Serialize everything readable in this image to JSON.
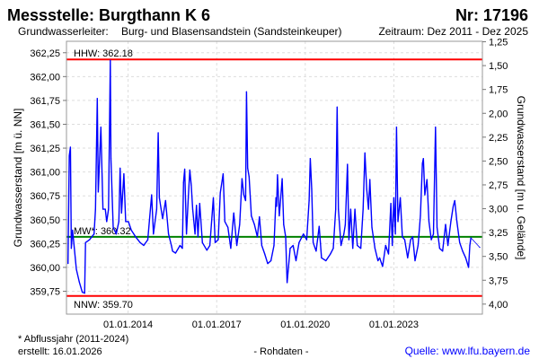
{
  "header": {
    "title": "Messstelle: Burgthann K 6",
    "number": "Nr: 17196",
    "aquifer_label": "Grundwasserleiter:",
    "aquifer": "Burg- und Blasensandstein (Sandsteinkeuper)",
    "period": "Zeitraum: Dez 2011 - Dez 2025"
  },
  "footer": {
    "note": "* Abflussjahr (2011-2024)",
    "created": "erstellt:  16.01.2026",
    "data_type": "- Rohdaten -",
    "source": "Quelle: www.lfu.bayern.de"
  },
  "chart_data": {
    "type": "line",
    "ylabel": "Grundwasserstand [m ü. NN]",
    "y2label": "Grundwasserstand [m u. Gelände]",
    "xlim": [
      "2011-12-01",
      "2025-12-31"
    ],
    "ylim": [
      359.51,
      362.37
    ],
    "y2_ground_level": 363.615,
    "grid": true,
    "x_ticks": [
      {
        "date": "2014-01-01",
        "label": "01.01.2014"
      },
      {
        "date": "2017-01-01",
        "label": "01.01.2017"
      },
      {
        "date": "2020-01-01",
        "label": "01.01.2020"
      },
      {
        "date": "2023-01-01",
        "label": "01.01.2023"
      }
    ],
    "y_ticks": [
      {
        "value": 362.25,
        "label": "362,25"
      },
      {
        "value": 362.0,
        "label": "362,00"
      },
      {
        "value": 361.75,
        "label": "361,75"
      },
      {
        "value": 361.5,
        "label": "361,50"
      },
      {
        "value": 361.25,
        "label": "361,25"
      },
      {
        "value": 361.0,
        "label": "361,00"
      },
      {
        "value": 360.75,
        "label": "360,75"
      },
      {
        "value": 360.5,
        "label": "360,50"
      },
      {
        "value": 360.25,
        "label": "360,25"
      },
      {
        "value": 360.0,
        "label": "360,00"
      },
      {
        "value": 359.75,
        "label": "359,75"
      }
    ],
    "y2_ticks": [
      {
        "value": 1.25,
        "label": "1,25"
      },
      {
        "value": 1.5,
        "label": "1,50"
      },
      {
        "value": 1.75,
        "label": "1,75"
      },
      {
        "value": 2.0,
        "label": "2,00"
      },
      {
        "value": 2.25,
        "label": "2,25"
      },
      {
        "value": 2.5,
        "label": "2,50"
      },
      {
        "value": 2.75,
        "label": "2,75"
      },
      {
        "value": 3.0,
        "label": "3,00"
      },
      {
        "value": 3.25,
        "label": "3,25"
      },
      {
        "value": 3.5,
        "label": "3,50"
      },
      {
        "value": 3.75,
        "label": "3,75"
      },
      {
        "value": 4.0,
        "label": "4,00"
      }
    ],
    "reference_lines": [
      {
        "name": "HHW",
        "label": "HHW: 362.18",
        "value": 362.18,
        "color": "#ff0000",
        "label_pos": "above"
      },
      {
        "name": "MW",
        "label": "MW*: 360.32",
        "value": 360.32,
        "color": "#008000",
        "label_pos": "above"
      },
      {
        "name": "NNW",
        "label": "NNW: 359.70",
        "value": 359.7,
        "color": "#ff0000",
        "label_pos": "below"
      }
    ],
    "series": [
      {
        "color": "#0000ff",
        "points": [
          [
            "2011-12-20",
            360.04
          ],
          [
            "2012-01-04",
            361.17
          ],
          [
            "2012-01-19",
            361.26
          ],
          [
            "2012-01-30",
            360.2
          ],
          [
            "2012-02-14",
            360.39
          ],
          [
            "2012-04-01",
            359.98
          ],
          [
            "2012-05-07",
            359.85
          ],
          [
            "2012-06-13",
            359.74
          ],
          [
            "2012-07-12",
            359.73
          ],
          [
            "2012-07-23",
            360.26
          ],
          [
            "2012-09-12",
            360.29
          ],
          [
            "2012-11-06",
            360.35
          ],
          [
            "2012-11-24",
            360.61
          ],
          [
            "2012-12-16",
            361.77
          ],
          [
            "2012-12-28",
            360.79
          ],
          [
            "2013-01-30",
            361.47
          ],
          [
            "2013-02-24",
            360.61
          ],
          [
            "2013-03-25",
            360.61
          ],
          [
            "2013-04-12",
            360.48
          ],
          [
            "2013-05-04",
            360.61
          ],
          [
            "2013-05-26",
            362.17
          ],
          [
            "2013-06-03",
            361.14
          ],
          [
            "2013-07-01",
            360.42
          ],
          [
            "2013-08-07",
            360.35
          ],
          [
            "2013-09-09",
            360.48
          ],
          [
            "2013-09-24",
            361.04
          ],
          [
            "2013-10-12",
            360.57
          ],
          [
            "2013-11-10",
            360.98
          ],
          [
            "2013-12-02",
            360.48
          ],
          [
            "2014-01-04",
            360.48
          ],
          [
            "2014-02-10",
            360.39
          ],
          [
            "2014-04-05",
            360.32
          ],
          [
            "2014-05-30",
            360.26
          ],
          [
            "2014-07-13",
            360.23
          ],
          [
            "2014-09-02",
            360.29
          ],
          [
            "2014-10-19",
            360.76
          ],
          [
            "2014-11-10",
            360.35
          ],
          [
            "2014-12-20",
            360.61
          ],
          [
            "2015-01-08",
            361.41
          ],
          [
            "2015-01-23",
            360.73
          ],
          [
            "2015-03-04",
            360.51
          ],
          [
            "2015-04-09",
            360.7
          ],
          [
            "2015-05-16",
            360.35
          ],
          [
            "2015-06-21",
            360.23
          ],
          [
            "2015-07-05",
            360.17
          ],
          [
            "2015-08-11",
            360.15
          ],
          [
            "2015-10-05",
            360.23
          ],
          [
            "2015-11-03",
            360.2
          ],
          [
            "2015-11-18",
            360.89
          ],
          [
            "2015-12-02",
            361.03
          ],
          [
            "2015-12-24",
            360.35
          ],
          [
            "2016-01-15",
            360.73
          ],
          [
            "2016-02-03",
            361.02
          ],
          [
            "2016-02-21",
            360.86
          ],
          [
            "2016-03-10",
            360.61
          ],
          [
            "2016-04-08",
            360.35
          ],
          [
            "2016-04-26",
            360.65
          ],
          [
            "2016-05-14",
            360.32
          ],
          [
            "2016-06-05",
            360.67
          ],
          [
            "2016-07-08",
            360.26
          ],
          [
            "2016-09-02",
            360.18
          ],
          [
            "2016-10-08",
            360.23
          ],
          [
            "2016-11-21",
            360.73
          ],
          [
            "2016-12-13",
            360.26
          ],
          [
            "2017-01-19",
            360.29
          ],
          [
            "2017-02-14",
            360.78
          ],
          [
            "2017-03-22",
            360.98
          ],
          [
            "2017-04-12",
            360.48
          ],
          [
            "2017-05-19",
            360.42
          ],
          [
            "2017-06-24",
            360.2
          ],
          [
            "2017-07-31",
            360.57
          ],
          [
            "2017-09-06",
            360.23
          ],
          [
            "2017-10-12",
            360.45
          ],
          [
            "2017-11-10",
            360.93
          ],
          [
            "2017-12-02",
            360.76
          ],
          [
            "2017-12-24",
            360.7
          ],
          [
            "2018-01-04",
            361.84
          ],
          [
            "2018-01-19",
            361.04
          ],
          [
            "2018-02-06",
            360.95
          ],
          [
            "2018-03-06",
            360.54
          ],
          [
            "2018-04-12",
            360.45
          ],
          [
            "2018-05-19",
            360.32
          ],
          [
            "2018-06-13",
            360.53
          ],
          [
            "2018-07-12",
            360.23
          ],
          [
            "2018-08-18",
            360.14
          ],
          [
            "2018-09-24",
            360.04
          ],
          [
            "2018-11-03",
            360.07
          ],
          [
            "2018-12-10",
            360.23
          ],
          [
            "2019-01-04",
            360.73
          ],
          [
            "2019-01-12",
            360.64
          ],
          [
            "2019-01-23",
            360.97
          ],
          [
            "2019-02-14",
            360.54
          ],
          [
            "2019-03-04",
            360.73
          ],
          [
            "2019-03-22",
            360.93
          ],
          [
            "2019-04-09",
            360.45
          ],
          [
            "2019-05-04",
            360.32
          ],
          [
            "2019-05-22",
            359.84
          ],
          [
            "2019-06-28",
            360.2
          ],
          [
            "2019-08-04",
            360.23
          ],
          [
            "2019-09-09",
            360.07
          ],
          [
            "2019-10-16",
            360.26
          ],
          [
            "2019-12-10",
            360.35
          ],
          [
            "2020-01-19",
            360.29
          ],
          [
            "2020-02-18",
            360.7
          ],
          [
            "2020-03-03",
            361.14
          ],
          [
            "2020-03-21",
            360.82
          ],
          [
            "2020-04-08",
            360.26
          ],
          [
            "2020-05-15",
            360.17
          ],
          [
            "2020-06-21",
            360.43
          ],
          [
            "2020-07-20",
            360.1
          ],
          [
            "2020-09-13",
            360.07
          ],
          [
            "2020-11-07",
            360.14
          ],
          [
            "2020-12-13",
            360.2
          ],
          [
            "2021-01-12",
            360.61
          ],
          [
            "2021-01-30",
            361.68
          ],
          [
            "2021-02-14",
            360.61
          ],
          [
            "2021-03-18",
            360.23
          ],
          [
            "2021-04-23",
            360.35
          ],
          [
            "2021-05-11",
            360.45
          ],
          [
            "2021-06-06",
            361.08
          ],
          [
            "2021-06-24",
            360.29
          ],
          [
            "2021-07-16",
            360.61
          ],
          [
            "2021-08-11",
            360.2
          ],
          [
            "2021-09-06",
            360.61
          ],
          [
            "2021-10-05",
            360.23
          ],
          [
            "2021-11-18",
            360.2
          ],
          [
            "2021-12-17",
            360.61
          ],
          [
            "2022-01-08",
            361.2
          ],
          [
            "2022-01-30",
            360.82
          ],
          [
            "2022-02-21",
            360.61
          ],
          [
            "2022-03-10",
            360.92
          ],
          [
            "2022-04-05",
            360.42
          ],
          [
            "2022-05-12",
            360.2
          ],
          [
            "2022-06-18",
            360.07
          ],
          [
            "2022-07-09",
            360.1
          ],
          [
            "2022-08-15",
            360.01
          ],
          [
            "2022-09-21",
            360.23
          ],
          [
            "2022-10-27",
            360.14
          ],
          [
            "2022-11-25",
            360.67
          ],
          [
            "2022-12-13",
            360.23
          ],
          [
            "2023-01-01",
            360.73
          ],
          [
            "2023-01-19",
            360.35
          ],
          [
            "2023-02-03",
            361.47
          ],
          [
            "2023-02-21",
            360.48
          ],
          [
            "2023-03-22",
            360.73
          ],
          [
            "2023-04-16",
            360.32
          ],
          [
            "2023-05-15",
            360.29
          ],
          [
            "2023-06-21",
            360.1
          ],
          [
            "2023-07-27",
            360.29
          ],
          [
            "2023-08-22",
            360.32
          ],
          [
            "2023-09-20",
            360.07
          ],
          [
            "2023-10-27",
            360.23
          ],
          [
            "2023-11-25",
            360.54
          ],
          [
            "2023-12-20",
            361.09
          ],
          [
            "2024-01-01",
            361.14
          ],
          [
            "2024-01-19",
            360.76
          ],
          [
            "2024-02-14",
            360.92
          ],
          [
            "2024-03-10",
            360.48
          ],
          [
            "2024-04-08",
            360.29
          ],
          [
            "2024-05-04",
            360.35
          ],
          [
            "2024-05-30",
            361.47
          ],
          [
            "2024-06-18",
            360.42
          ],
          [
            "2024-07-20",
            360.2
          ],
          [
            "2024-08-26",
            360.17
          ],
          [
            "2024-10-01",
            360.45
          ],
          [
            "2024-10-30",
            360.23
          ],
          [
            "2024-12-06",
            360.48
          ],
          [
            "2025-01-04",
            360.64
          ],
          [
            "2025-01-23",
            360.7
          ],
          [
            "2025-02-18",
            360.48
          ],
          [
            "2025-03-25",
            360.26
          ],
          [
            "2025-05-01",
            360.17
          ],
          [
            "2025-06-07",
            360.1
          ],
          [
            "2025-07-13",
            360.0
          ],
          [
            "2025-07-28",
            360.23
          ],
          [
            "2025-08-11",
            360.31
          ],
          [
            "2025-11-28",
            360.21
          ]
        ]
      }
    ]
  }
}
